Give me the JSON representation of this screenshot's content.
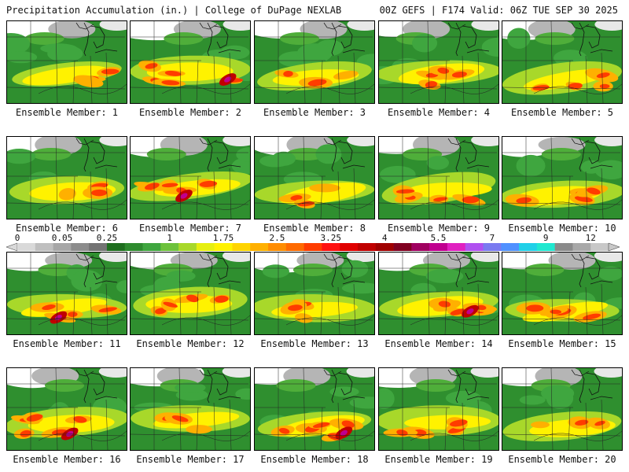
{
  "header": {
    "title_left": "Precipitation Accumulation (in.) | College of DuPage NEXLAB",
    "title_right": "00Z GEFS | F174 Valid: 06Z TUE SEP 30 2025"
  },
  "panel_label_prefix": "Ensemble Member: ",
  "members": [
    {
      "id": 1,
      "label": "Ensemble Member: 1",
      "intensity": 1
    },
    {
      "id": 2,
      "label": "Ensemble Member: 2",
      "intensity": 3
    },
    {
      "id": 3,
      "label": "Ensemble Member: 3",
      "intensity": 1
    },
    {
      "id": 4,
      "label": "Ensemble Member: 4",
      "intensity": 2
    },
    {
      "id": 5,
      "label": "Ensemble Member: 5",
      "intensity": 2
    },
    {
      "id": 6,
      "label": "Ensemble Member: 6",
      "intensity": 1
    },
    {
      "id": 7,
      "label": "Ensemble Member: 7",
      "intensity": 3
    },
    {
      "id": 8,
      "label": "Ensemble Member: 8",
      "intensity": 1
    },
    {
      "id": 9,
      "label": "Ensemble Member: 9",
      "intensity": 2
    },
    {
      "id": 10,
      "label": "Ensemble Member: 10",
      "intensity": 2
    },
    {
      "id": 11,
      "label": "Ensemble Member: 11",
      "intensity": 3
    },
    {
      "id": 12,
      "label": "Ensemble Member: 12",
      "intensity": 2
    },
    {
      "id": 13,
      "label": "Ensemble Member: 13",
      "intensity": 1
    },
    {
      "id": 14,
      "label": "Ensemble Member: 14",
      "intensity": 3
    },
    {
      "id": 15,
      "label": "Ensemble Member: 15",
      "intensity": 2
    },
    {
      "id": 16,
      "label": "Ensemble Member: 16",
      "intensity": 3
    },
    {
      "id": 17,
      "label": "Ensemble Member: 17",
      "intensity": 1
    },
    {
      "id": 18,
      "label": "Ensemble Member: 18",
      "intensity": 3
    },
    {
      "id": 19,
      "label": "Ensemble Member: 19",
      "intensity": 2
    },
    {
      "id": 20,
      "label": "Ensemble Member: 20",
      "intensity": 1
    }
  ],
  "colorbar": {
    "units": "in.",
    "ticks": [
      {
        "label": "0",
        "index": 0
      },
      {
        "label": "0.05",
        "index": 2.5
      },
      {
        "label": "0.25",
        "index": 5
      },
      {
        "label": "1",
        "index": 8.5
      },
      {
        "label": "1.75",
        "index": 11.5
      },
      {
        "label": "2.5",
        "index": 14.5
      },
      {
        "label": "3.25",
        "index": 17.5
      },
      {
        "label": "4",
        "index": 20.5
      },
      {
        "label": "5.5",
        "index": 23.5
      },
      {
        "label": "7",
        "index": 26.5
      },
      {
        "label": "9",
        "index": 29.5
      },
      {
        "label": "12",
        "index": 32
      }
    ],
    "colors": [
      "#d9d9d9",
      "#bfbfbf",
      "#a6a6a6",
      "#8c8c8c",
      "#737373",
      "#1e6e1e",
      "#2e8b2e",
      "#3fa63f",
      "#6dc23c",
      "#a8d82a",
      "#e6ef10",
      "#fff200",
      "#ffd400",
      "#ffb000",
      "#ff8c00",
      "#ff6a00",
      "#ff3c00",
      "#ff1010",
      "#e00000",
      "#c00000",
      "#a00000",
      "#800020",
      "#a00060",
      "#c00090",
      "#e020c0",
      "#b050f0",
      "#7a7af0",
      "#5090ff",
      "#20d0e8",
      "#20e8d0",
      "#8a8a8a",
      "#a8a8a8",
      "#c8c8c8"
    ]
  }
}
